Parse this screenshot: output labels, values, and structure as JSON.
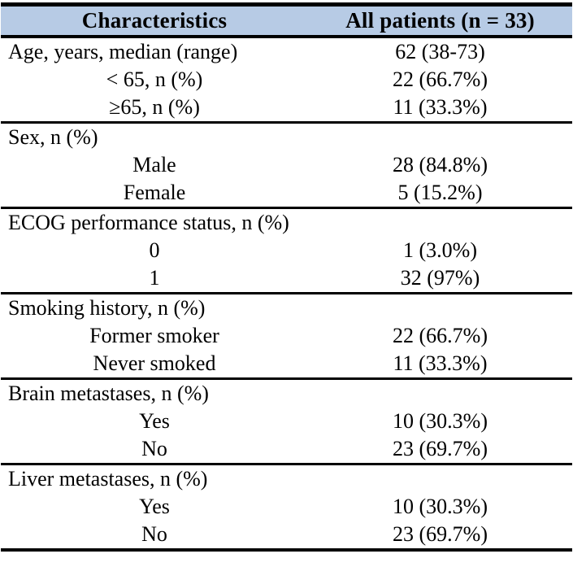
{
  "colors": {
    "header_bg": "#b7cbe5",
    "border": "#000000",
    "text": "#000000",
    "page_bg": "#ffffff"
  },
  "table": {
    "columns": [
      "Characteristics",
      "All patients (n = 33)"
    ],
    "sections": [
      {
        "name": "age",
        "rows": [
          {
            "label": "Age, years, median (range)",
            "value": "62 (38-73)"
          },
          {
            "label": "< 65, n (%)",
            "value": "22 (66.7%)"
          },
          {
            "label": "≥65, n (%)",
            "value": "11 (33.3%)"
          }
        ]
      },
      {
        "name": "sex",
        "rows": [
          {
            "label": "Sex, n (%)",
            "value": ""
          },
          {
            "label": "Male",
            "value": "28 (84.8%)"
          },
          {
            "label": "Female",
            "value": "5 (15.2%)"
          }
        ]
      },
      {
        "name": "ecog",
        "rows": [
          {
            "label": "ECOG performance status, n (%)",
            "value": ""
          },
          {
            "label": "0",
            "value": "1 (3.0%)"
          },
          {
            "label": "1",
            "value": "32 (97%)"
          }
        ]
      },
      {
        "name": "smoking",
        "rows": [
          {
            "label": "Smoking history, n (%)",
            "value": ""
          },
          {
            "label": "Former smoker",
            "value": "22 (66.7%)"
          },
          {
            "label": "Never smoked",
            "value": "11 (33.3%)"
          }
        ]
      },
      {
        "name": "brain_metastases",
        "rows": [
          {
            "label": "Brain metastases, n (%)",
            "value": ""
          },
          {
            "label": "Yes",
            "value": "10 (30.3%)"
          },
          {
            "label": "No",
            "value": "23 (69.7%)"
          }
        ]
      },
      {
        "name": "liver_metastases",
        "rows": [
          {
            "label": "Liver metastases, n (%)",
            "value": ""
          },
          {
            "label": "Yes",
            "value": "10 (30.3%)"
          },
          {
            "label": "No",
            "value": "23 (69.7%)"
          }
        ]
      }
    ]
  }
}
